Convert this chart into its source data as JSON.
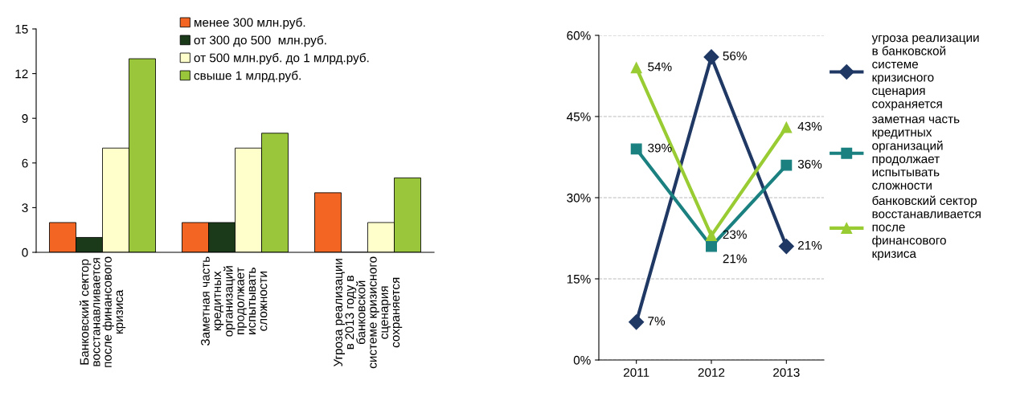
{
  "chart_data": [
    {
      "type": "bar",
      "categories": [
        "Банковский сектор\nвосстанавливается\nпосле финансового\nкризиса",
        "Заметная часть\nкредитных\nорганизаций\nпродолжает\nиспытывать\nсложности",
        "Угроза реализации\nв 2013 году в\nбанковской\nсистеме кризисного\nсценария\nсохраняется"
      ],
      "series": [
        {
          "name": "менее 300 млн.руб.",
          "color": "#f26522",
          "values": [
            2,
            2,
            4
          ]
        },
        {
          "name": "от 300 до 500  млн.руб.",
          "color": "#1a3a1a",
          "values": [
            1,
            2,
            0
          ]
        },
        {
          "name": "от 500 млн.руб. до 1 млрд.руб.",
          "color": "#ffffcc",
          "values": [
            7,
            7,
            2
          ]
        },
        {
          "name": "свыше 1 млрд.руб.",
          "color": "#99c63a",
          "values": [
            13,
            8,
            5
          ]
        }
      ],
      "ylim": [
        0,
        15
      ],
      "yticks": [
        0,
        3,
        6,
        9,
        12,
        15
      ],
      "grid": false,
      "legend": "top"
    },
    {
      "type": "line",
      "categories": [
        "2011",
        "2012",
        "2013"
      ],
      "series": [
        {
          "name": "угроза реализации\nв банковской\nсистеме\nкризисного\nсценария\nсохраняется",
          "color": "#1f3864",
          "marker": "diamond",
          "values": [
            7,
            56,
            21
          ],
          "value_labels": [
            "7%",
            "56%",
            "21%"
          ]
        },
        {
          "name": "заметная часть\nкредитных\nорганизаций\nпродолжает\nиспытывать\nсложности",
          "color": "#1a8080",
          "marker": "square",
          "values": [
            39,
            21,
            36
          ],
          "value_labels": [
            "39%",
            "21%",
            "36%"
          ]
        },
        {
          "name": "банковский сектор\nвосстанавливается\nпосле\nфинансового\nкризиса",
          "color": "#99cc33",
          "marker": "triangle",
          "values": [
            54,
            23,
            43
          ],
          "value_labels": [
            "54%",
            "23%",
            "43%"
          ]
        }
      ],
      "ylim": [
        0,
        60
      ],
      "yticks": [
        {
          "value": 0,
          "label": "0%"
        },
        {
          "value": 15,
          "label": "15%"
        },
        {
          "value": 30,
          "label": "30%"
        },
        {
          "value": 45,
          "label": "45%"
        },
        {
          "value": 60,
          "label": "60%"
        }
      ],
      "grid": "y",
      "legend": "right"
    }
  ]
}
